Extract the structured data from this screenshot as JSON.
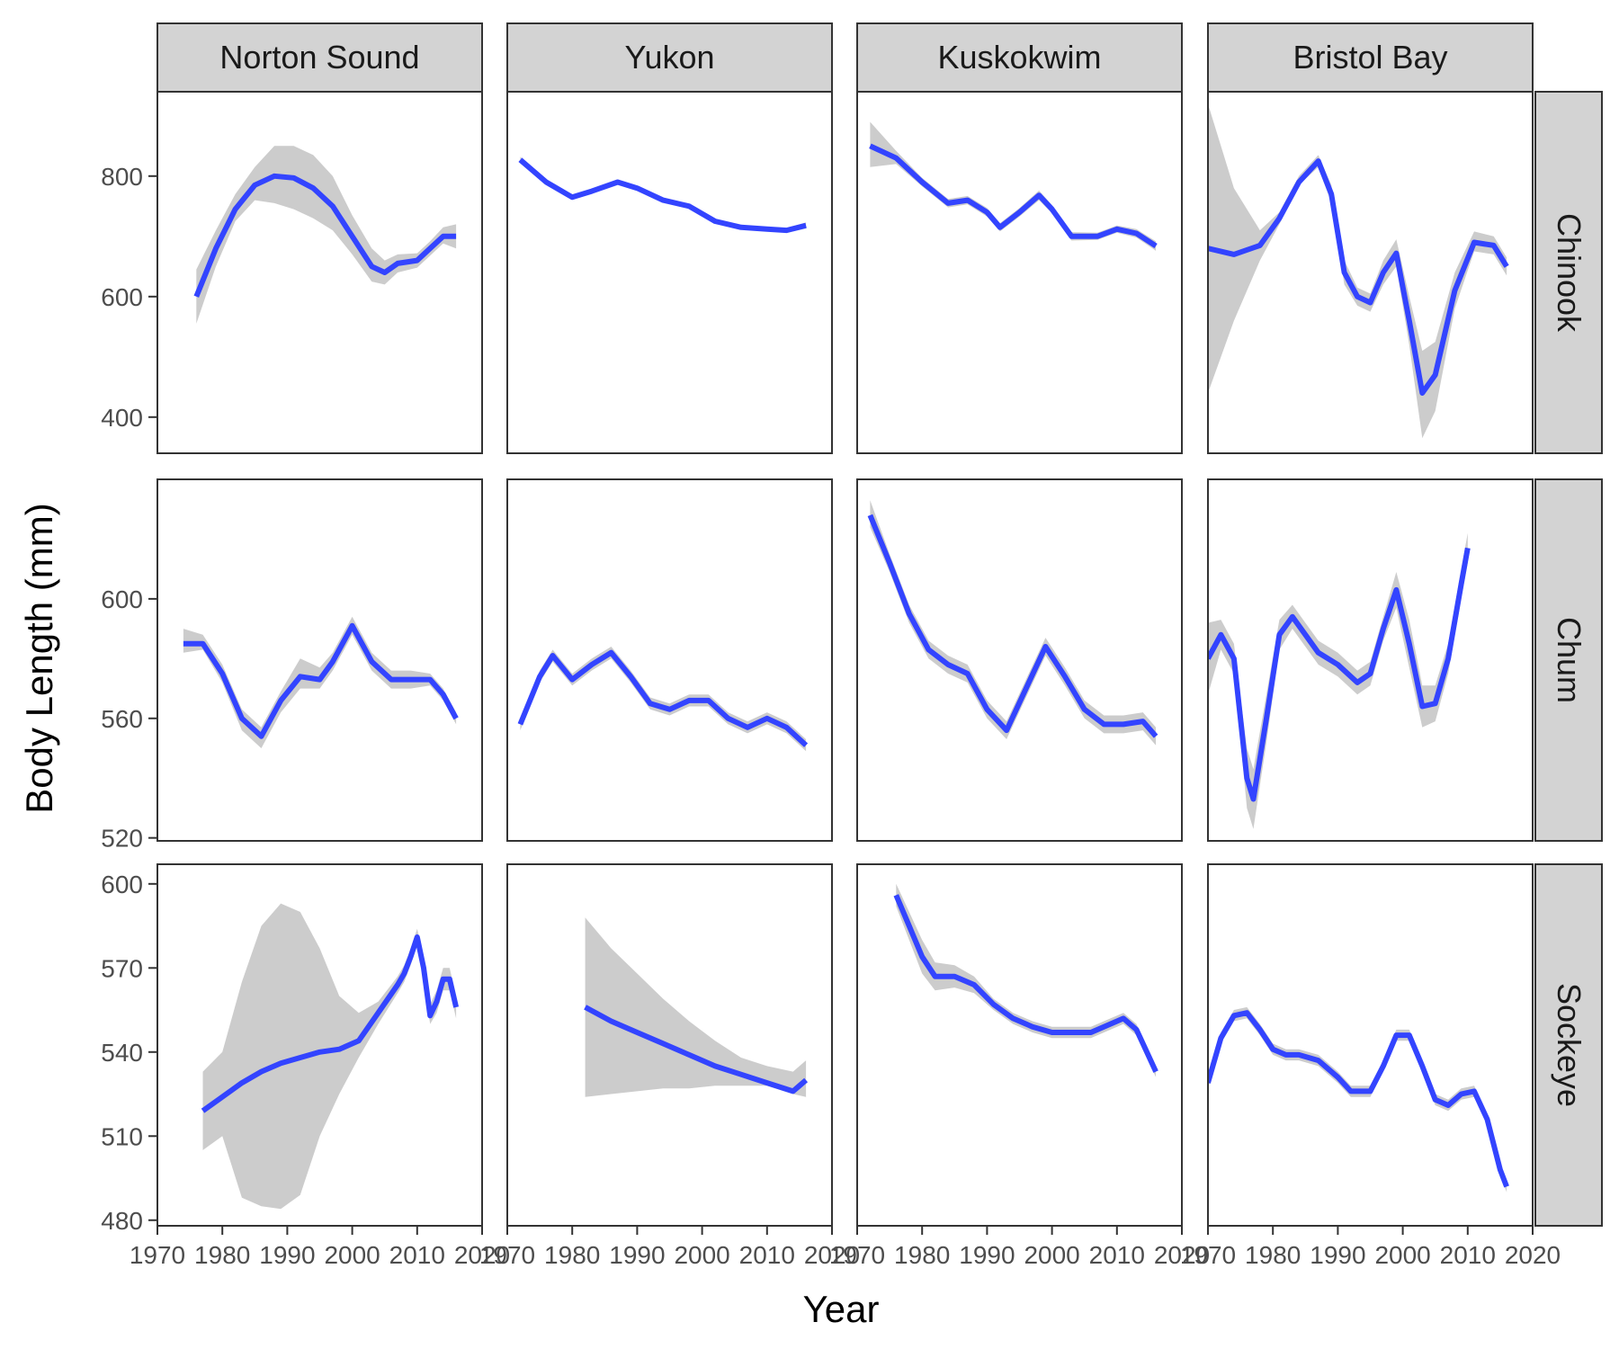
{
  "chart_data": {
    "type": "line",
    "title": "",
    "xlabel": "Year",
    "ylabel": "Body Length (mm)",
    "columns": [
      "Norton Sound",
      "Yukon",
      "Kuskokwim",
      "Bristol Bay"
    ],
    "rows": [
      "Chinook",
      "Chum",
      "Sockeye"
    ],
    "xlim": [
      1970,
      2020
    ],
    "x_ticks": [
      1970,
      1980,
      1990,
      2000,
      2010,
      2020
    ],
    "x_tick_labels": [
      "1970",
      "1980",
      "1990",
      "2000",
      "2010",
      "2020"
    ],
    "row_axes": [
      {
        "row": "Chinook",
        "ylim": [
          340,
          940
        ],
        "y_ticks": [
          400,
          600,
          800
        ],
        "y_tick_labels": [
          "400",
          "600",
          "800"
        ]
      },
      {
        "row": "Chum",
        "ylim": [
          519,
          640
        ],
        "y_ticks": [
          520,
          560,
          600
        ],
        "y_tick_labels": [
          "520",
          "560",
          "600"
        ]
      },
      {
        "row": "Sockeye",
        "ylim": [
          478,
          607
        ],
        "y_ticks": [
          480,
          510,
          540,
          570,
          600
        ],
        "y_tick_labels": [
          "480",
          "510",
          "540",
          "570",
          "600"
        ]
      }
    ],
    "grid": false,
    "series_color": "#3344ff",
    "band_color": "#cccccc",
    "panels": [
      {
        "row": "Chinook",
        "column": "Norton Sound",
        "x": [
          1976,
          1979,
          1982,
          1985,
          1988,
          1991,
          1994,
          1997,
          2000,
          2003,
          2005,
          2007,
          2010,
          2012,
          2014,
          2016
        ],
        "y": [
          600,
          680,
          745,
          785,
          800,
          797,
          780,
          750,
          700,
          650,
          640,
          655,
          660,
          680,
          700,
          700
        ],
        "y_low": [
          555,
          650,
          725,
          760,
          755,
          745,
          730,
          710,
          670,
          625,
          620,
          640,
          648,
          668,
          688,
          680
        ],
        "y_high": [
          645,
          710,
          770,
          815,
          850,
          850,
          835,
          800,
          735,
          680,
          660,
          670,
          672,
          692,
          715,
          720
        ]
      },
      {
        "row": "Chinook",
        "column": "Yukon",
        "x": [
          1972,
          1976,
          1980,
          1983,
          1987,
          1990,
          1994,
          1998,
          2002,
          2006,
          2010,
          2013,
          2016
        ],
        "y": [
          827,
          790,
          765,
          775,
          790,
          780,
          760,
          750,
          725,
          715,
          712,
          710,
          718
        ],
        "y_low": [
          822,
          786,
          761,
          771,
          786,
          776,
          756,
          746,
          721,
          711,
          708,
          706,
          713
        ],
        "y_high": [
          832,
          794,
          769,
          779,
          794,
          784,
          764,
          754,
          729,
          719,
          716,
          714,
          723
        ]
      },
      {
        "row": "Chinook",
        "column": "Kuskokwim",
        "x": [
          1972,
          1976,
          1980,
          1984,
          1987,
          1990,
          1992,
          1995,
          1998,
          2000,
          2003,
          2007,
          2010,
          2013,
          2016
        ],
        "y": [
          850,
          830,
          790,
          755,
          760,
          740,
          715,
          740,
          768,
          745,
          700,
          700,
          712,
          705,
          684
        ],
        "y_low": [
          815,
          820,
          783,
          748,
          753,
          733,
          708,
          733,
          760,
          738,
          693,
          694,
          706,
          698,
          676
        ],
        "y_high": [
          890,
          842,
          797,
          762,
          767,
          747,
          722,
          747,
          776,
          752,
          707,
          706,
          718,
          712,
          692
        ]
      },
      {
        "row": "Chinook",
        "column": "Bristol Bay",
        "x": [
          1970,
          1974,
          1978,
          1981,
          1984,
          1987,
          1989,
          1991,
          1993,
          1995,
          1997,
          1999,
          2001,
          2003,
          2005,
          2008,
          2011,
          2014,
          2016
        ],
        "y": [
          680,
          670,
          685,
          730,
          790,
          825,
          770,
          640,
          600,
          590,
          640,
          672,
          560,
          440,
          470,
          610,
          690,
          685,
          650
        ],
        "y_low": [
          440,
          560,
          660,
          720,
          785,
          815,
          755,
          620,
          585,
          575,
          620,
          650,
          520,
          365,
          410,
          580,
          675,
          670,
          635
        ],
        "y_high": [
          920,
          780,
          710,
          740,
          800,
          835,
          785,
          660,
          615,
          605,
          660,
          695,
          600,
          510,
          525,
          640,
          708,
          700,
          665
        ]
      },
      {
        "row": "Chum",
        "column": "Norton Sound",
        "x": [
          1974,
          1977,
          1980,
          1983,
          1986,
          1989,
          1992,
          1995,
          1997,
          2000,
          2003,
          2006,
          2009,
          2012,
          2014,
          2016
        ],
        "y": [
          585,
          585,
          575,
          560,
          554,
          566,
          574,
          573,
          579,
          591,
          579,
          573,
          573,
          573,
          568,
          560
        ],
        "y_low": [
          582,
          583,
          572,
          556,
          550,
          562,
          570,
          570,
          576,
          588,
          576,
          570,
          570,
          571,
          566,
          558
        ],
        "y_high": [
          590,
          588,
          578,
          563,
          557,
          569,
          580,
          577,
          582,
          594,
          582,
          576,
          576,
          575,
          570,
          562
        ]
      },
      {
        "row": "Chum",
        "column": "Yukon",
        "x": [
          1972,
          1975,
          1977,
          1980,
          1983,
          1986,
          1989,
          1992,
          1995,
          1998,
          2001,
          2004,
          2007,
          2010,
          2013,
          2016
        ],
        "y": [
          558,
          574,
          581,
          573,
          578,
          582,
          574,
          565,
          563,
          566,
          566,
          560,
          557,
          560,
          557,
          551
        ],
        "y_low": [
          556,
          572,
          579,
          571,
          576,
          580,
          572,
          563,
          561,
          564,
          564,
          558,
          555,
          558,
          555,
          549
        ],
        "y_high": [
          560,
          576,
          583,
          575,
          580,
          584,
          576,
          567,
          565,
          568,
          568,
          562,
          559,
          562,
          559,
          553
        ]
      },
      {
        "row": "Chum",
        "column": "Kuskokwim",
        "x": [
          1972,
          1975,
          1978,
          1981,
          1984,
          1987,
          1990,
          1993,
          1996,
          1999,
          2002,
          2005,
          2008,
          2011,
          2014,
          2016
        ],
        "y": [
          628,
          612,
          595,
          583,
          578,
          575,
          563,
          556,
          570,
          584,
          574,
          563,
          558,
          558,
          559,
          554
        ],
        "y_low": [
          624,
          609,
          592,
          580,
          575,
          572,
          560,
          553,
          567,
          581,
          571,
          560,
          555,
          555,
          556,
          551
        ],
        "y_high": [
          633,
          615,
          598,
          586,
          581,
          578,
          566,
          559,
          573,
          587,
          577,
          566,
          561,
          561,
          562,
          557
        ]
      },
      {
        "row": "Chum",
        "column": "Bristol Bay",
        "x": [
          1970,
          1972,
          1974,
          1976,
          1977,
          1979,
          1981,
          1983,
          1985,
          1987,
          1990,
          1993,
          1995,
          1997,
          1999,
          2001,
          2003,
          2005,
          2007,
          2009,
          2010
        ],
        "y": [
          580,
          588,
          580,
          540,
          533,
          560,
          588,
          594,
          588,
          582,
          578,
          572,
          575,
          590,
          603,
          585,
          564,
          565,
          580,
          605,
          617
        ],
        "y_low": [
          568,
          583,
          575,
          530,
          523,
          552,
          583,
          590,
          584,
          578,
          574,
          568,
          571,
          586,
          597,
          577,
          557,
          559,
          575,
          600,
          612
        ],
        "y_high": [
          592,
          593,
          585,
          550,
          543,
          568,
          593,
          598,
          592,
          586,
          582,
          576,
          579,
          594,
          609,
          593,
          571,
          571,
          585,
          610,
          622
        ]
      },
      {
        "row": "Sockeye",
        "column": "Norton Sound",
        "x": [
          1977,
          1980,
          1983,
          1986,
          1989,
          1992,
          1995,
          1998,
          2001,
          2004,
          2007,
          2008,
          2009,
          2010,
          2011,
          2012,
          2013,
          2014,
          2015,
          2016
        ],
        "y": [
          519,
          524,
          529,
          533,
          536,
          538,
          540,
          541,
          544,
          554,
          564,
          568,
          574,
          581,
          570,
          553,
          558,
          566,
          566,
          556
        ],
        "y_low": [
          505,
          510,
          488,
          485,
          484,
          489,
          510,
          525,
          538,
          550,
          561,
          565,
          571,
          578,
          566,
          550,
          554,
          562,
          562,
          552
        ],
        "y_high": [
          533,
          540,
          565,
          585,
          593,
          590,
          577,
          560,
          554,
          558,
          567,
          571,
          577,
          584,
          574,
          557,
          562,
          570,
          570,
          560
        ]
      },
      {
        "row": "Sockeye",
        "column": "Yukon",
        "x": [
          1982,
          1986,
          1990,
          1994,
          1998,
          2002,
          2006,
          2010,
          2014,
          2016
        ],
        "y": [
          556,
          551,
          547,
          543,
          539,
          535,
          532,
          529,
          526,
          530
        ],
        "y_low": [
          524,
          525,
          526,
          527,
          527,
          528,
          528,
          528,
          525,
          524
        ],
        "y_high": [
          588,
          577,
          568,
          559,
          551,
          544,
          538,
          535,
          533,
          537
        ]
      },
      {
        "row": "Sockeye",
        "column": "Kuskokwim",
        "x": [
          1976,
          1978,
          1980,
          1982,
          1985,
          1988,
          1991,
          1994,
          1997,
          2000,
          2003,
          2006,
          2009,
          2011,
          2013,
          2014,
          2016
        ],
        "y": [
          596,
          585,
          574,
          567,
          567,
          564,
          557,
          552,
          549,
          547,
          547,
          547,
          550,
          552,
          548,
          543,
          533
        ],
        "y_low": [
          592,
          580,
          568,
          562,
          563,
          561,
          555,
          550,
          547,
          545,
          545,
          545,
          548,
          550,
          546,
          541,
          531
        ],
        "y_high": [
          600,
          590,
          580,
          572,
          571,
          567,
          559,
          554,
          551,
          549,
          549,
          549,
          552,
          554,
          550,
          545,
          535
        ]
      },
      {
        "row": "Sockeye",
        "column": "Bristol Bay",
        "x": [
          1970,
          1972,
          1974,
          1976,
          1978,
          1980,
          1982,
          1984,
          1987,
          1990,
          1992,
          1995,
          1997,
          1999,
          2001,
          2003,
          2005,
          2007,
          2009,
          2011,
          2013,
          2015,
          2016
        ],
        "y": [
          529,
          545,
          553,
          554,
          548,
          541,
          539,
          539,
          537,
          531,
          526,
          526,
          535,
          546,
          546,
          535,
          523,
          521,
          525,
          526,
          516,
          498,
          492
        ],
        "y_low": [
          527,
          543,
          551,
          552,
          546,
          539,
          537,
          537,
          535,
          529,
          524,
          524,
          533,
          544,
          544,
          533,
          521,
          519,
          523,
          524,
          514,
          496,
          490
        ],
        "y_high": [
          531,
          547,
          555,
          556,
          550,
          543,
          541,
          541,
          539,
          533,
          528,
          528,
          537,
          548,
          548,
          537,
          525,
          523,
          527,
          528,
          518,
          500,
          494
        ]
      }
    ]
  }
}
